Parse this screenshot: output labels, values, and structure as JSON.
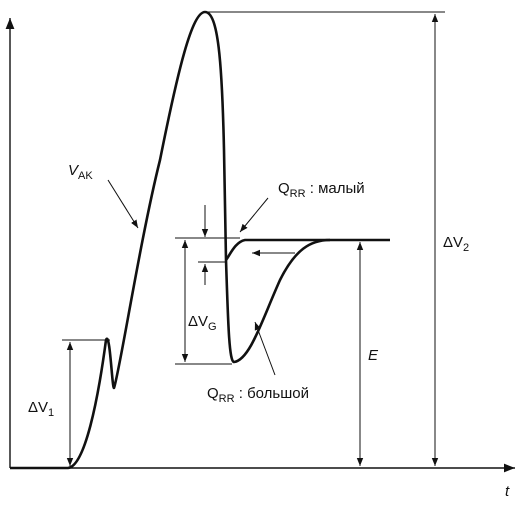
{
  "labels": {
    "vak": {
      "main": "V",
      "sub": "AK"
    },
    "qrr_small": {
      "main": "Q",
      "sub": "RR",
      "rest": " : малый"
    },
    "qrr_large": {
      "main": "Q",
      "sub": "RR",
      "rest": " : большой"
    },
    "dvg": {
      "main": "ΔV",
      "sub": "G"
    },
    "dv1": {
      "main": "ΔV",
      "sub": "1"
    },
    "dv2": {
      "main": "ΔV",
      "sub": "2"
    },
    "e": "E",
    "t": "t"
  }
}
